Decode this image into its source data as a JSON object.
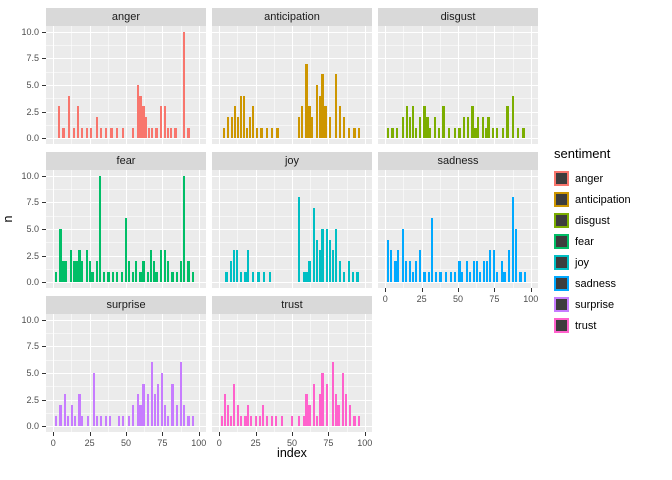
{
  "chart_data": {
    "type": "bar",
    "title": "",
    "xlabel": "index",
    "ylabel": "n",
    "legend_title": "sentiment",
    "legend_position": "right",
    "grid": true,
    "panel_bg": "#EBEBEB",
    "strip_bg": "#D9D9D9",
    "grid_color": "#FFFFFF",
    "legend_key_fill": "#3d3d3d",
    "xlim": [
      -5,
      105
    ],
    "ylim": [
      -0.55,
      10.55
    ],
    "x_ticks": [
      {
        "value": 0,
        "label": "0"
      },
      {
        "value": 25,
        "label": "25"
      },
      {
        "value": 50,
        "label": "50"
      },
      {
        "value": 75,
        "label": "75"
      },
      {
        "value": 100,
        "label": "100"
      }
    ],
    "y_ticks": [
      {
        "value": 0,
        "label": "0.0"
      },
      {
        "value": 2.5,
        "label": "2.5"
      },
      {
        "value": 5,
        "label": "5.0"
      },
      {
        "value": 7.5,
        "label": "7.5"
      },
      {
        "value": 10,
        "label": "10.0"
      }
    ],
    "minor_x": [
      12.5,
      37.5,
      62.5,
      87.5
    ],
    "minor_y": [
      1.25,
      3.75,
      6.25,
      8.75
    ],
    "facets": [
      {
        "label": "anger",
        "color": "#F8766D",
        "bars": [
          [
            4,
            3
          ],
          [
            7,
            1
          ],
          [
            11,
            4
          ],
          [
            14,
            1
          ],
          [
            17,
            3
          ],
          [
            20,
            1
          ],
          [
            23,
            1
          ],
          [
            26,
            1
          ],
          [
            30,
            2
          ],
          [
            33,
            1
          ],
          [
            36,
            1
          ],
          [
            40,
            1
          ],
          [
            44,
            1
          ],
          [
            48,
            1
          ],
          [
            55,
            1
          ],
          [
            58,
            5
          ],
          [
            60,
            4
          ],
          [
            62,
            3
          ],
          [
            64,
            2
          ],
          [
            66,
            1
          ],
          [
            68,
            1
          ],
          [
            71,
            1
          ],
          [
            74,
            3
          ],
          [
            77,
            3
          ],
          [
            79,
            1
          ],
          [
            81,
            1
          ],
          [
            84,
            1
          ],
          [
            90,
            10
          ],
          [
            93,
            1
          ]
        ]
      },
      {
        "label": "anticipation",
        "color": "#CD9600",
        "bars": [
          [
            3,
            1
          ],
          [
            6,
            2
          ],
          [
            9,
            2
          ],
          [
            11,
            3
          ],
          [
            13,
            2
          ],
          [
            15,
            4
          ],
          [
            17,
            4
          ],
          [
            19,
            1
          ],
          [
            21,
            2
          ],
          [
            23,
            3
          ],
          [
            26,
            1
          ],
          [
            29,
            1
          ],
          [
            33,
            1
          ],
          [
            36,
            1
          ],
          [
            40,
            1
          ],
          [
            55,
            2
          ],
          [
            57,
            3
          ],
          [
            60,
            7
          ],
          [
            62,
            3
          ],
          [
            64,
            2
          ],
          [
            67,
            5
          ],
          [
            69,
            4
          ],
          [
            71,
            6
          ],
          [
            73,
            3
          ],
          [
            76,
            2
          ],
          [
            80,
            6
          ],
          [
            83,
            3
          ],
          [
            86,
            2
          ],
          [
            89,
            1
          ],
          [
            93,
            1
          ],
          [
            96,
            1
          ]
        ]
      },
      {
        "label": "disgust",
        "color": "#7CAE00",
        "bars": [
          [
            2,
            1
          ],
          [
            5,
            1
          ],
          [
            8,
            1
          ],
          [
            12,
            2
          ],
          [
            15,
            3
          ],
          [
            17,
            2
          ],
          [
            19,
            3
          ],
          [
            21,
            1
          ],
          [
            24,
            2
          ],
          [
            27,
            3
          ],
          [
            29,
            2
          ],
          [
            31,
            1
          ],
          [
            34,
            2
          ],
          [
            37,
            1
          ],
          [
            40,
            3
          ],
          [
            44,
            1
          ],
          [
            48,
            1
          ],
          [
            51,
            1
          ],
          [
            54,
            2
          ],
          [
            57,
            2
          ],
          [
            60,
            3
          ],
          [
            62,
            1
          ],
          [
            64,
            2
          ],
          [
            67,
            2
          ],
          [
            69,
            1
          ],
          [
            71,
            2
          ],
          [
            74,
            1
          ],
          [
            77,
            1
          ],
          [
            81,
            1
          ],
          [
            84,
            3
          ],
          [
            88,
            4
          ],
          [
            91,
            1
          ],
          [
            95,
            1
          ]
        ]
      },
      {
        "label": "fear",
        "color": "#00BE67",
        "bars": [
          [
            2,
            1
          ],
          [
            5,
            5
          ],
          [
            7,
            2
          ],
          [
            9,
            2
          ],
          [
            12,
            3
          ],
          [
            14,
            2
          ],
          [
            16,
            2
          ],
          [
            18,
            3
          ],
          [
            20,
            2
          ],
          [
            23,
            3
          ],
          [
            25,
            2
          ],
          [
            27,
            1
          ],
          [
            30,
            2
          ],
          [
            32,
            10
          ],
          [
            35,
            1
          ],
          [
            38,
            1
          ],
          [
            41,
            1
          ],
          [
            44,
            1
          ],
          [
            47,
            1
          ],
          [
            50,
            6
          ],
          [
            52,
            2
          ],
          [
            55,
            1
          ],
          [
            57,
            2
          ],
          [
            60,
            1
          ],
          [
            62,
            2
          ],
          [
            65,
            1
          ],
          [
            67,
            3
          ],
          [
            69,
            2
          ],
          [
            71,
            1
          ],
          [
            74,
            3
          ],
          [
            77,
            3
          ],
          [
            79,
            2
          ],
          [
            82,
            1
          ],
          [
            85,
            1
          ],
          [
            88,
            2
          ],
          [
            90,
            10
          ],
          [
            93,
            2
          ],
          [
            96,
            1
          ]
        ]
      },
      {
        "label": "joy",
        "color": "#00BFC4",
        "bars": [
          [
            5,
            1
          ],
          [
            8,
            2
          ],
          [
            10,
            3
          ],
          [
            12,
            3
          ],
          [
            15,
            1
          ],
          [
            18,
            1
          ],
          [
            20,
            3
          ],
          [
            23,
            1
          ],
          [
            27,
            1
          ],
          [
            31,
            1
          ],
          [
            35,
            1
          ],
          [
            55,
            8
          ],
          [
            58,
            1
          ],
          [
            60,
            1
          ],
          [
            62,
            2
          ],
          [
            65,
            7
          ],
          [
            67,
            4
          ],
          [
            69,
            3
          ],
          [
            71,
            5
          ],
          [
            74,
            5
          ],
          [
            76,
            4
          ],
          [
            78,
            3
          ],
          [
            80,
            5
          ],
          [
            83,
            2
          ],
          [
            86,
            1
          ],
          [
            89,
            2
          ],
          [
            92,
            1
          ],
          [
            95,
            1
          ]
        ]
      },
      {
        "label": "sadness",
        "color": "#00A9FF",
        "bars": [
          [
            2,
            4
          ],
          [
            4,
            3
          ],
          [
            7,
            2
          ],
          [
            9,
            3
          ],
          [
            12,
            5
          ],
          [
            14,
            2
          ],
          [
            17,
            2
          ],
          [
            19,
            1
          ],
          [
            21,
            2
          ],
          [
            24,
            3
          ],
          [
            27,
            1
          ],
          [
            30,
            1
          ],
          [
            32,
            6
          ],
          [
            35,
            1
          ],
          [
            38,
            1
          ],
          [
            42,
            1
          ],
          [
            45,
            1
          ],
          [
            48,
            1
          ],
          [
            51,
            2
          ],
          [
            53,
            1
          ],
          [
            56,
            2
          ],
          [
            58,
            1
          ],
          [
            61,
            2
          ],
          [
            63,
            2
          ],
          [
            65,
            1
          ],
          [
            68,
            2
          ],
          [
            70,
            2
          ],
          [
            72,
            3
          ],
          [
            75,
            3
          ],
          [
            77,
            1
          ],
          [
            80,
            2
          ],
          [
            82,
            1
          ],
          [
            85,
            3
          ],
          [
            88,
            8
          ],
          [
            90,
            5
          ],
          [
            93,
            1
          ],
          [
            96,
            1
          ]
        ]
      },
      {
        "label": "surprise",
        "color": "#C77CFF",
        "bars": [
          [
            2,
            1
          ],
          [
            5,
            2
          ],
          [
            8,
            3
          ],
          [
            10,
            1
          ],
          [
            13,
            2
          ],
          [
            15,
            1
          ],
          [
            18,
            3
          ],
          [
            20,
            1
          ],
          [
            24,
            1
          ],
          [
            28,
            5
          ],
          [
            30,
            1
          ],
          [
            33,
            1
          ],
          [
            36,
            1
          ],
          [
            39,
            1
          ],
          [
            45,
            1
          ],
          [
            48,
            1
          ],
          [
            52,
            1
          ],
          [
            55,
            2
          ],
          [
            58,
            3
          ],
          [
            60,
            2
          ],
          [
            62,
            4
          ],
          [
            65,
            3
          ],
          [
            68,
            6
          ],
          [
            70,
            3
          ],
          [
            72,
            4
          ],
          [
            75,
            5
          ],
          [
            77,
            2
          ],
          [
            79,
            1
          ],
          [
            82,
            4
          ],
          [
            85,
            2
          ],
          [
            88,
            6
          ],
          [
            90,
            2
          ],
          [
            93,
            1
          ],
          [
            96,
            1
          ]
        ]
      },
      {
        "label": "trust",
        "color": "#FF61CC",
        "bars": [
          [
            2,
            1
          ],
          [
            4,
            3
          ],
          [
            6,
            2
          ],
          [
            8,
            1
          ],
          [
            10,
            4
          ],
          [
            13,
            2
          ],
          [
            15,
            1
          ],
          [
            18,
            1
          ],
          [
            20,
            2
          ],
          [
            22,
            1
          ],
          [
            25,
            1
          ],
          [
            28,
            1
          ],
          [
            30,
            2
          ],
          [
            33,
            1
          ],
          [
            36,
            1
          ],
          [
            39,
            1
          ],
          [
            43,
            1
          ],
          [
            50,
            1
          ],
          [
            55,
            1
          ],
          [
            58,
            1
          ],
          [
            60,
            3
          ],
          [
            62,
            2
          ],
          [
            65,
            4
          ],
          [
            67,
            1
          ],
          [
            69,
            3
          ],
          [
            71,
            5
          ],
          [
            74,
            4
          ],
          [
            78,
            6
          ],
          [
            80,
            3
          ],
          [
            82,
            2
          ],
          [
            85,
            5
          ],
          [
            87,
            3
          ],
          [
            90,
            2
          ],
          [
            93,
            1
          ],
          [
            96,
            1
          ]
        ]
      }
    ]
  }
}
